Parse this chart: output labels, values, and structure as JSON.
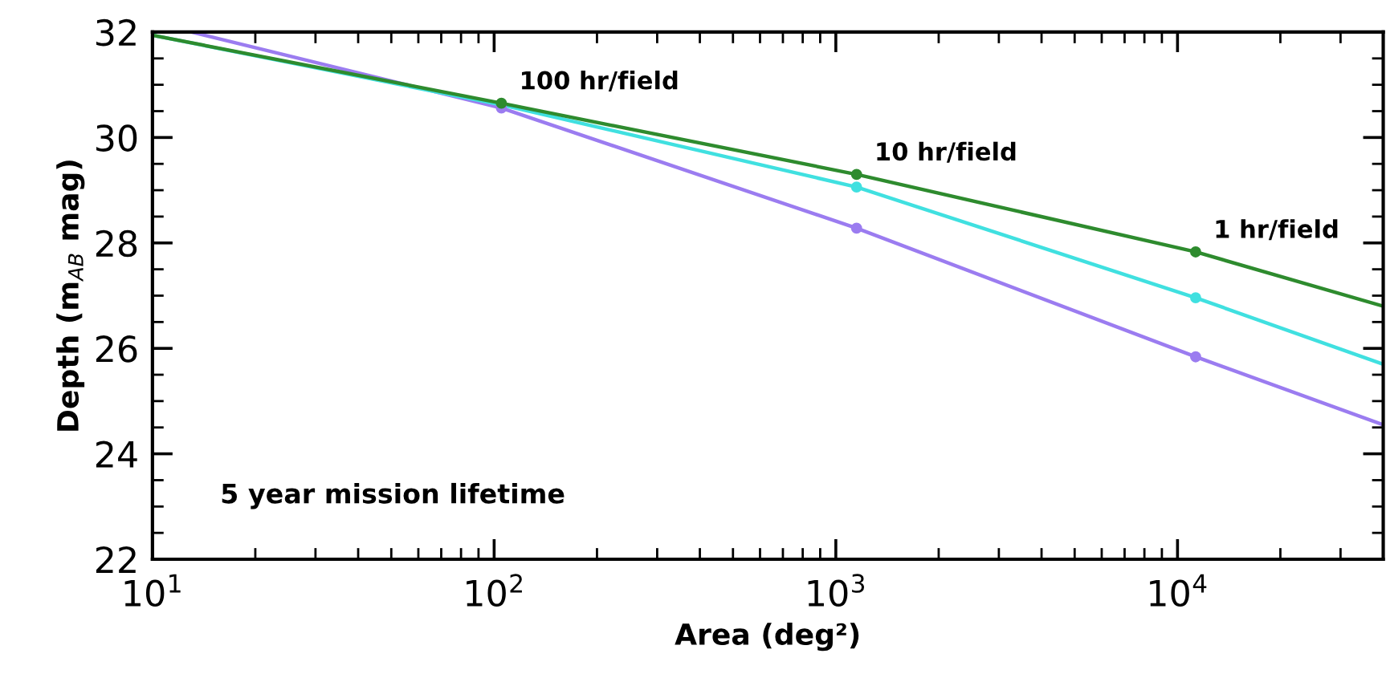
{
  "chart_data": {
    "type": "line",
    "xlabel": "Area (deg²)",
    "ylabel": "Depth (m$_{AB}$ mag)",
    "log": "x",
    "xlim": [
      10,
      40000
    ],
    "ylim": [
      22,
      32
    ],
    "xticks": [
      {
        "value": 10,
        "label": "10$^{1}$"
      },
      {
        "value": 100,
        "label": "10$^{2}$"
      },
      {
        "value": 1000,
        "label": "10$^{3}$"
      },
      {
        "value": 10000,
        "label": "10$^{4}$"
      }
    ],
    "yticks": [
      22,
      24,
      26,
      28,
      30,
      32
    ],
    "grid": false,
    "line_style": "solid",
    "series": [
      {
        "color": "#9b7cf0",
        "marker": "none",
        "x": [
          13,
          105,
          1150,
          11300,
          40000
        ],
        "values": [
          32,
          30.56,
          28.28,
          25.84,
          24.55
        ]
      },
      {
        "color": "#40e0e0",
        "marker": "none",
        "x": [
          10,
          105,
          1150,
          11300,
          40000
        ],
        "values": [
          31.94,
          30.62,
          29.06,
          26.96,
          25.7
        ]
      },
      {
        "color": "#2e8b2e",
        "marker": "none",
        "x": [
          10,
          105,
          1150,
          11300,
          40000
        ],
        "values": [
          31.94,
          30.65,
          29.3,
          27.83,
          26.8
        ]
      },
      {
        "type": "scatter",
        "color": "#9b7cf0",
        "marker": "circle",
        "x": [
          105,
          1150,
          11300
        ],
        "values": [
          30.56,
          28.28,
          25.84
        ]
      },
      {
        "type": "scatter",
        "color": "#40e0e0",
        "marker": "circle",
        "x": [
          1150,
          11300
        ],
        "values": [
          29.06,
          26.96
        ]
      },
      {
        "type": "scatter",
        "color": "#2e8b2e",
        "marker": "circle",
        "x": [
          105,
          1150,
          11300
        ],
        "values": [
          30.65,
          29.3,
          27.83
        ]
      }
    ],
    "annotations": [
      {
        "text": "100 hr/field",
        "x": 105,
        "y": 30.65
      },
      {
        "text": "10 hr/field",
        "x": 1150,
        "y": 29.3
      },
      {
        "text": "1 hr/field",
        "x": 11300,
        "y": 27.83
      },
      "5 year mission lifetime"
    ]
  }
}
